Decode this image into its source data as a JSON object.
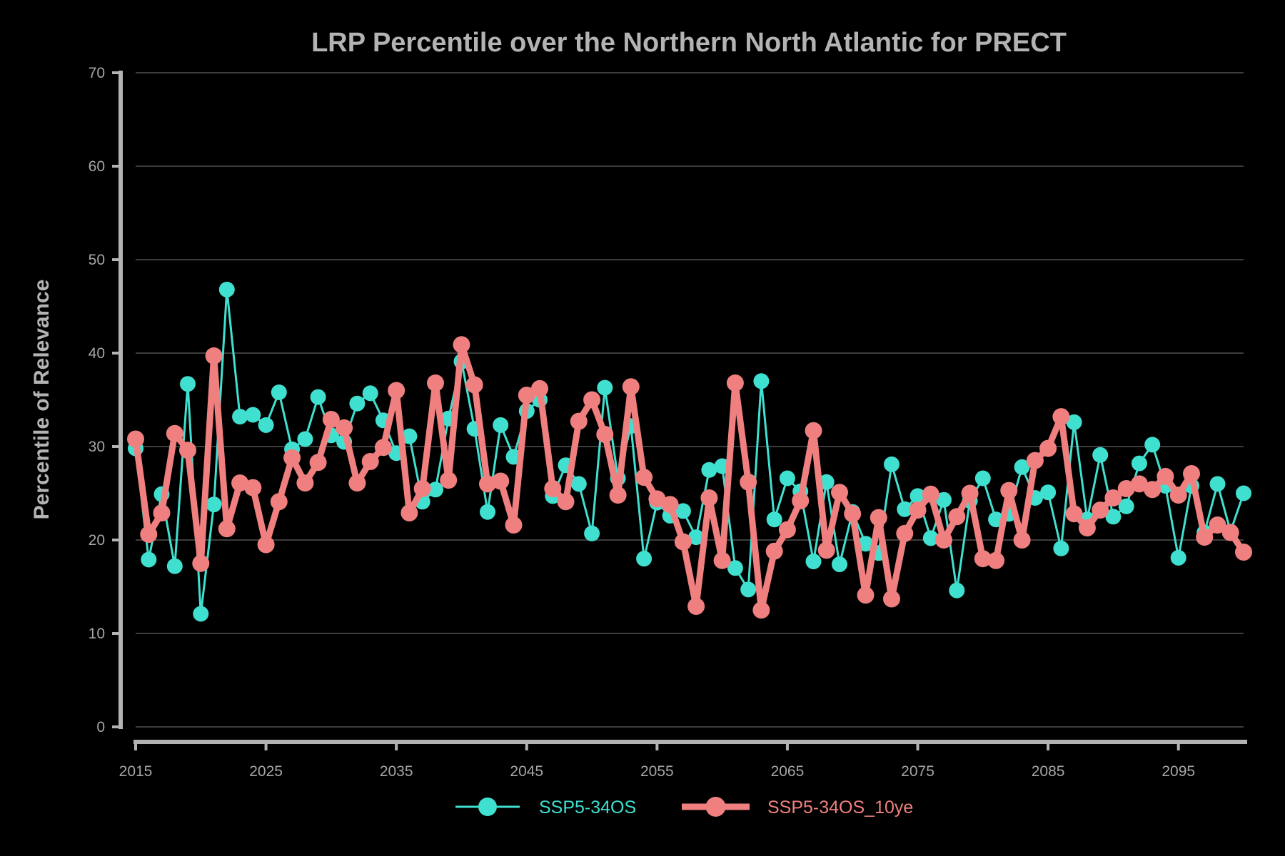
{
  "chart_data": {
    "type": "line",
    "title": "LRP Percentile over the Northern North Atlantic for PRECT",
    "xlabel": "",
    "ylabel": "Percentile of Relevance",
    "xlim": [
      2015,
      2100
    ],
    "ylim": [
      0,
      70
    ],
    "xticks": [
      2015,
      2025,
      2035,
      2045,
      2055,
      2065,
      2075,
      2085,
      2095
    ],
    "yticks": [
      0,
      10,
      20,
      30,
      40,
      50,
      60,
      70
    ],
    "grid": "horizontal",
    "legend": "bottom-center",
    "x": [
      2015,
      2016,
      2017,
      2018,
      2019,
      2020,
      2021,
      2022,
      2023,
      2024,
      2025,
      2026,
      2027,
      2028,
      2029,
      2030,
      2031,
      2032,
      2033,
      2034,
      2035,
      2036,
      2037,
      2038,
      2039,
      2040,
      2041,
      2042,
      2043,
      2044,
      2045,
      2046,
      2047,
      2048,
      2049,
      2050,
      2051,
      2052,
      2053,
      2054,
      2055,
      2056,
      2057,
      2058,
      2059,
      2060,
      2061,
      2062,
      2063,
      2064,
      2065,
      2066,
      2067,
      2068,
      2069,
      2070,
      2071,
      2072,
      2073,
      2074,
      2075,
      2076,
      2077,
      2078,
      2079,
      2080,
      2081,
      2082,
      2083,
      2084,
      2085,
      2086,
      2087,
      2088,
      2089,
      2090,
      2091,
      2092,
      2093,
      2094,
      2095,
      2096,
      2097,
      2098,
      2099,
      2100
    ],
    "series": [
      {
        "name": "SSP5-34OS",
        "color": "#40e0d0",
        "values": [
          29.8,
          17.9,
          24.9,
          17.2,
          36.7,
          12.1,
          23.8,
          46.8,
          33.2,
          33.4,
          32.3,
          35.8,
          29.7,
          30.8,
          35.3,
          31.2,
          30.5,
          34.6,
          35.7,
          32.8,
          29.3,
          31.1,
          24.1,
          25.4,
          33.0,
          39.1,
          31.9,
          23.0,
          32.3,
          28.9,
          33.8,
          35.0,
          24.7,
          28.0,
          26.0,
          20.7,
          36.3,
          26.6,
          32.2,
          18.0,
          24.0,
          22.6,
          23.1,
          20.3,
          27.5,
          27.9,
          17.0,
          14.7,
          37.0,
          22.2,
          26.6,
          25.2,
          17.7,
          26.2,
          17.4,
          23.0,
          19.6,
          18.6,
          28.1,
          23.3,
          24.7,
          20.2,
          24.3,
          14.6,
          24.2,
          26.6,
          22.2,
          22.8,
          27.8,
          24.5,
          25.1,
          19.1,
          32.6,
          22.2,
          29.1,
          22.5,
          23.6,
          28.2,
          30.2,
          25.8,
          18.1,
          25.8,
          20.8,
          26.0,
          20.9,
          25.0
        ]
      },
      {
        "name": "SSP5-34OS_10ye",
        "color": "#f08080",
        "values": [
          30.8,
          20.6,
          22.9,
          31.4,
          29.6,
          17.5,
          39.7,
          21.2,
          26.1,
          25.6,
          19.5,
          24.1,
          28.8,
          26.1,
          28.3,
          32.9,
          32.0,
          26.1,
          28.4,
          29.9,
          36.0,
          22.9,
          25.5,
          36.8,
          26.4,
          40.9,
          36.6,
          26.0,
          26.3,
          21.6,
          35.5,
          36.2,
          25.5,
          24.1,
          32.7,
          35.0,
          31.3,
          24.8,
          36.4,
          26.7,
          24.4,
          23.8,
          19.8,
          12.9,
          24.5,
          17.8,
          36.8,
          26.2,
          12.5,
          18.8,
          21.1,
          24.2,
          31.7,
          18.9,
          25.1,
          22.8,
          14.1,
          22.4,
          13.7,
          20.7,
          23.2,
          24.9,
          20.0,
          22.5,
          25.0,
          18.0,
          17.8,
          25.3,
          20.0,
          28.5,
          29.8,
          33.2,
          22.8,
          21.3,
          23.2,
          24.5,
          25.5,
          26.0,
          25.4,
          26.8,
          24.8,
          27.1,
          20.3,
          21.6,
          20.8,
          18.7
        ]
      }
    ]
  }
}
